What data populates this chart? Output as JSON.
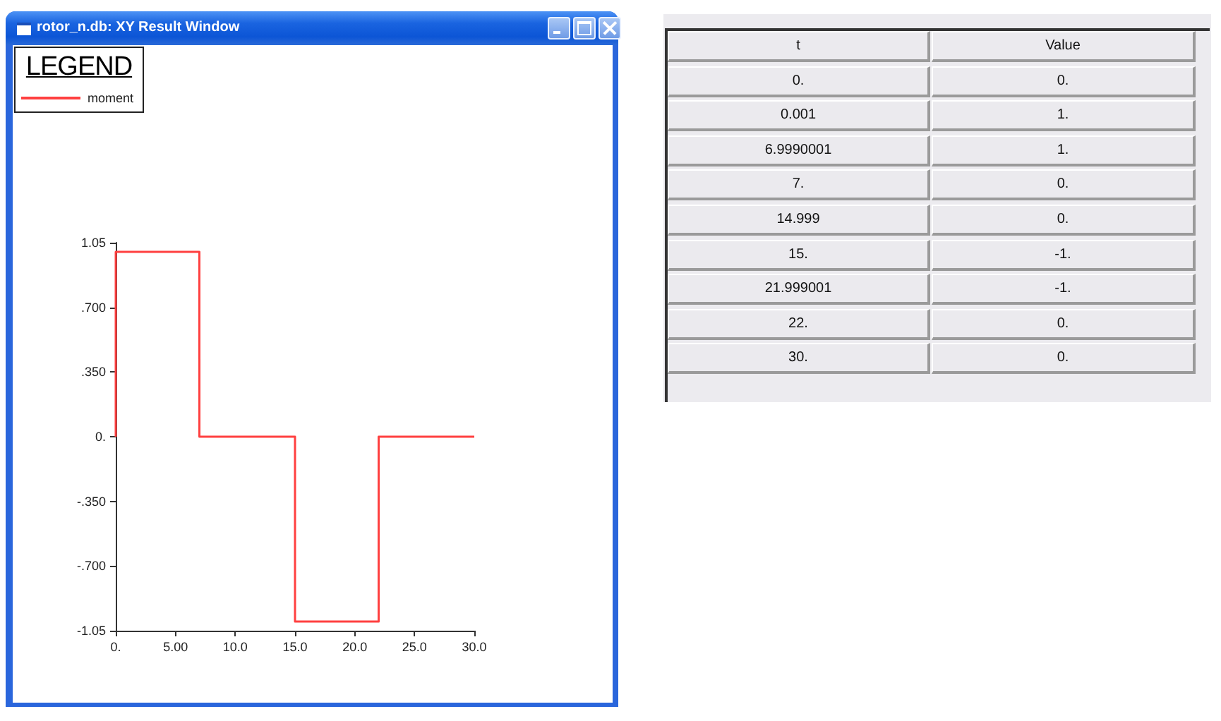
{
  "chart_data": [
    {
      "type": "line",
      "title": "rotor_n.db: XY Result Window",
      "legend_title": "LEGEND",
      "legend": "top left",
      "grid": false,
      "xlim": [
        0,
        30
      ],
      "xticks": [
        {
          "value": 0,
          "label": "0."
        },
        {
          "value": 5,
          "label": "5.00"
        },
        {
          "value": 10,
          "label": "10.0"
        },
        {
          "value": 15,
          "label": "15.0"
        },
        {
          "value": 20,
          "label": "20.0"
        },
        {
          "value": 25,
          "label": "25.0"
        },
        {
          "value": 30,
          "label": "30.0"
        }
      ],
      "ylim": [
        -1.05,
        1.05
      ],
      "yticks": [
        -1.05,
        {
          "value": -0.7,
          "label": "-.700"
        },
        {
          "value": -0.35,
          "label": "-.350"
        },
        {
          "value": 0,
          "label": "0."
        },
        {
          "value": 0.35,
          "label": ".350"
        },
        {
          "value": 0.7,
          "label": ".700"
        },
        1.05
      ],
      "series": [
        {
          "name": "moment",
          "color": "#ff4040",
          "x": [
            0,
            0.001,
            6.9990001,
            7,
            14.999,
            15,
            21.999001,
            22,
            30
          ],
          "values": [
            0,
            1,
            1,
            0,
            0,
            -1,
            -1,
            0,
            0
          ]
        }
      ]
    },
    {
      "type": "other",
      "annotations": [
        "t",
        "Value",
        "0.",
        "0.",
        "0.001",
        "1.",
        "6.9990001",
        "1.",
        "7.",
        "0.",
        "14.999",
        "0.",
        "15.",
        "-1.",
        "21.999001",
        "-1.",
        "22.",
        "0.",
        "30.",
        "0."
      ]
    }
  ]
}
